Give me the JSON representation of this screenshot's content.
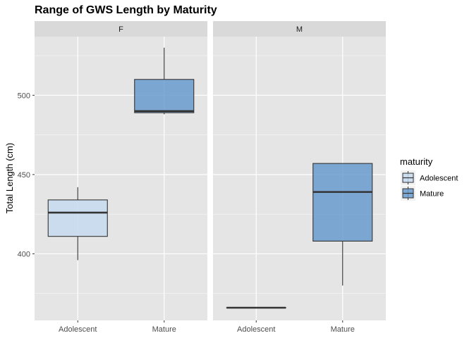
{
  "chart_data": {
    "type": "box",
    "title": "Range of GWS Length by Maturity",
    "xlabel": "",
    "ylabel": "Total Length (cm)",
    "ylim": [
      358,
      537
    ],
    "yticks": [
      400,
      450,
      500
    ],
    "categories": [
      "Adolescent",
      "Mature"
    ],
    "legend": {
      "title": "maturity",
      "position": "right",
      "entries": [
        {
          "label": "Adolescent",
          "color": "#C6DBEF"
        },
        {
          "label": "Mature",
          "color": "#6A9BCF"
        }
      ]
    },
    "facets": [
      {
        "label": "F",
        "boxes": [
          {
            "category": "Adolescent",
            "min": 396,
            "q1": 411,
            "median": 426,
            "q3": 434,
            "max": 442
          },
          {
            "category": "Mature",
            "min": 488,
            "q1": 489,
            "median": 490,
            "q3": 510,
            "max": 530
          }
        ]
      },
      {
        "label": "M",
        "boxes": [
          {
            "category": "Adolescent",
            "min": 366,
            "q1": 366,
            "median": 366,
            "q3": 366,
            "max": 366
          },
          {
            "category": "Mature",
            "min": 380,
            "q1": 408,
            "median": 439,
            "q3": 457,
            "max": 457
          }
        ]
      }
    ],
    "grid": true,
    "colors": {
      "panel_bg": "#E5E5E5",
      "strip_bg": "#D9D9D9",
      "grid_major": "#FFFFFF",
      "box_outline": "#333333"
    }
  }
}
